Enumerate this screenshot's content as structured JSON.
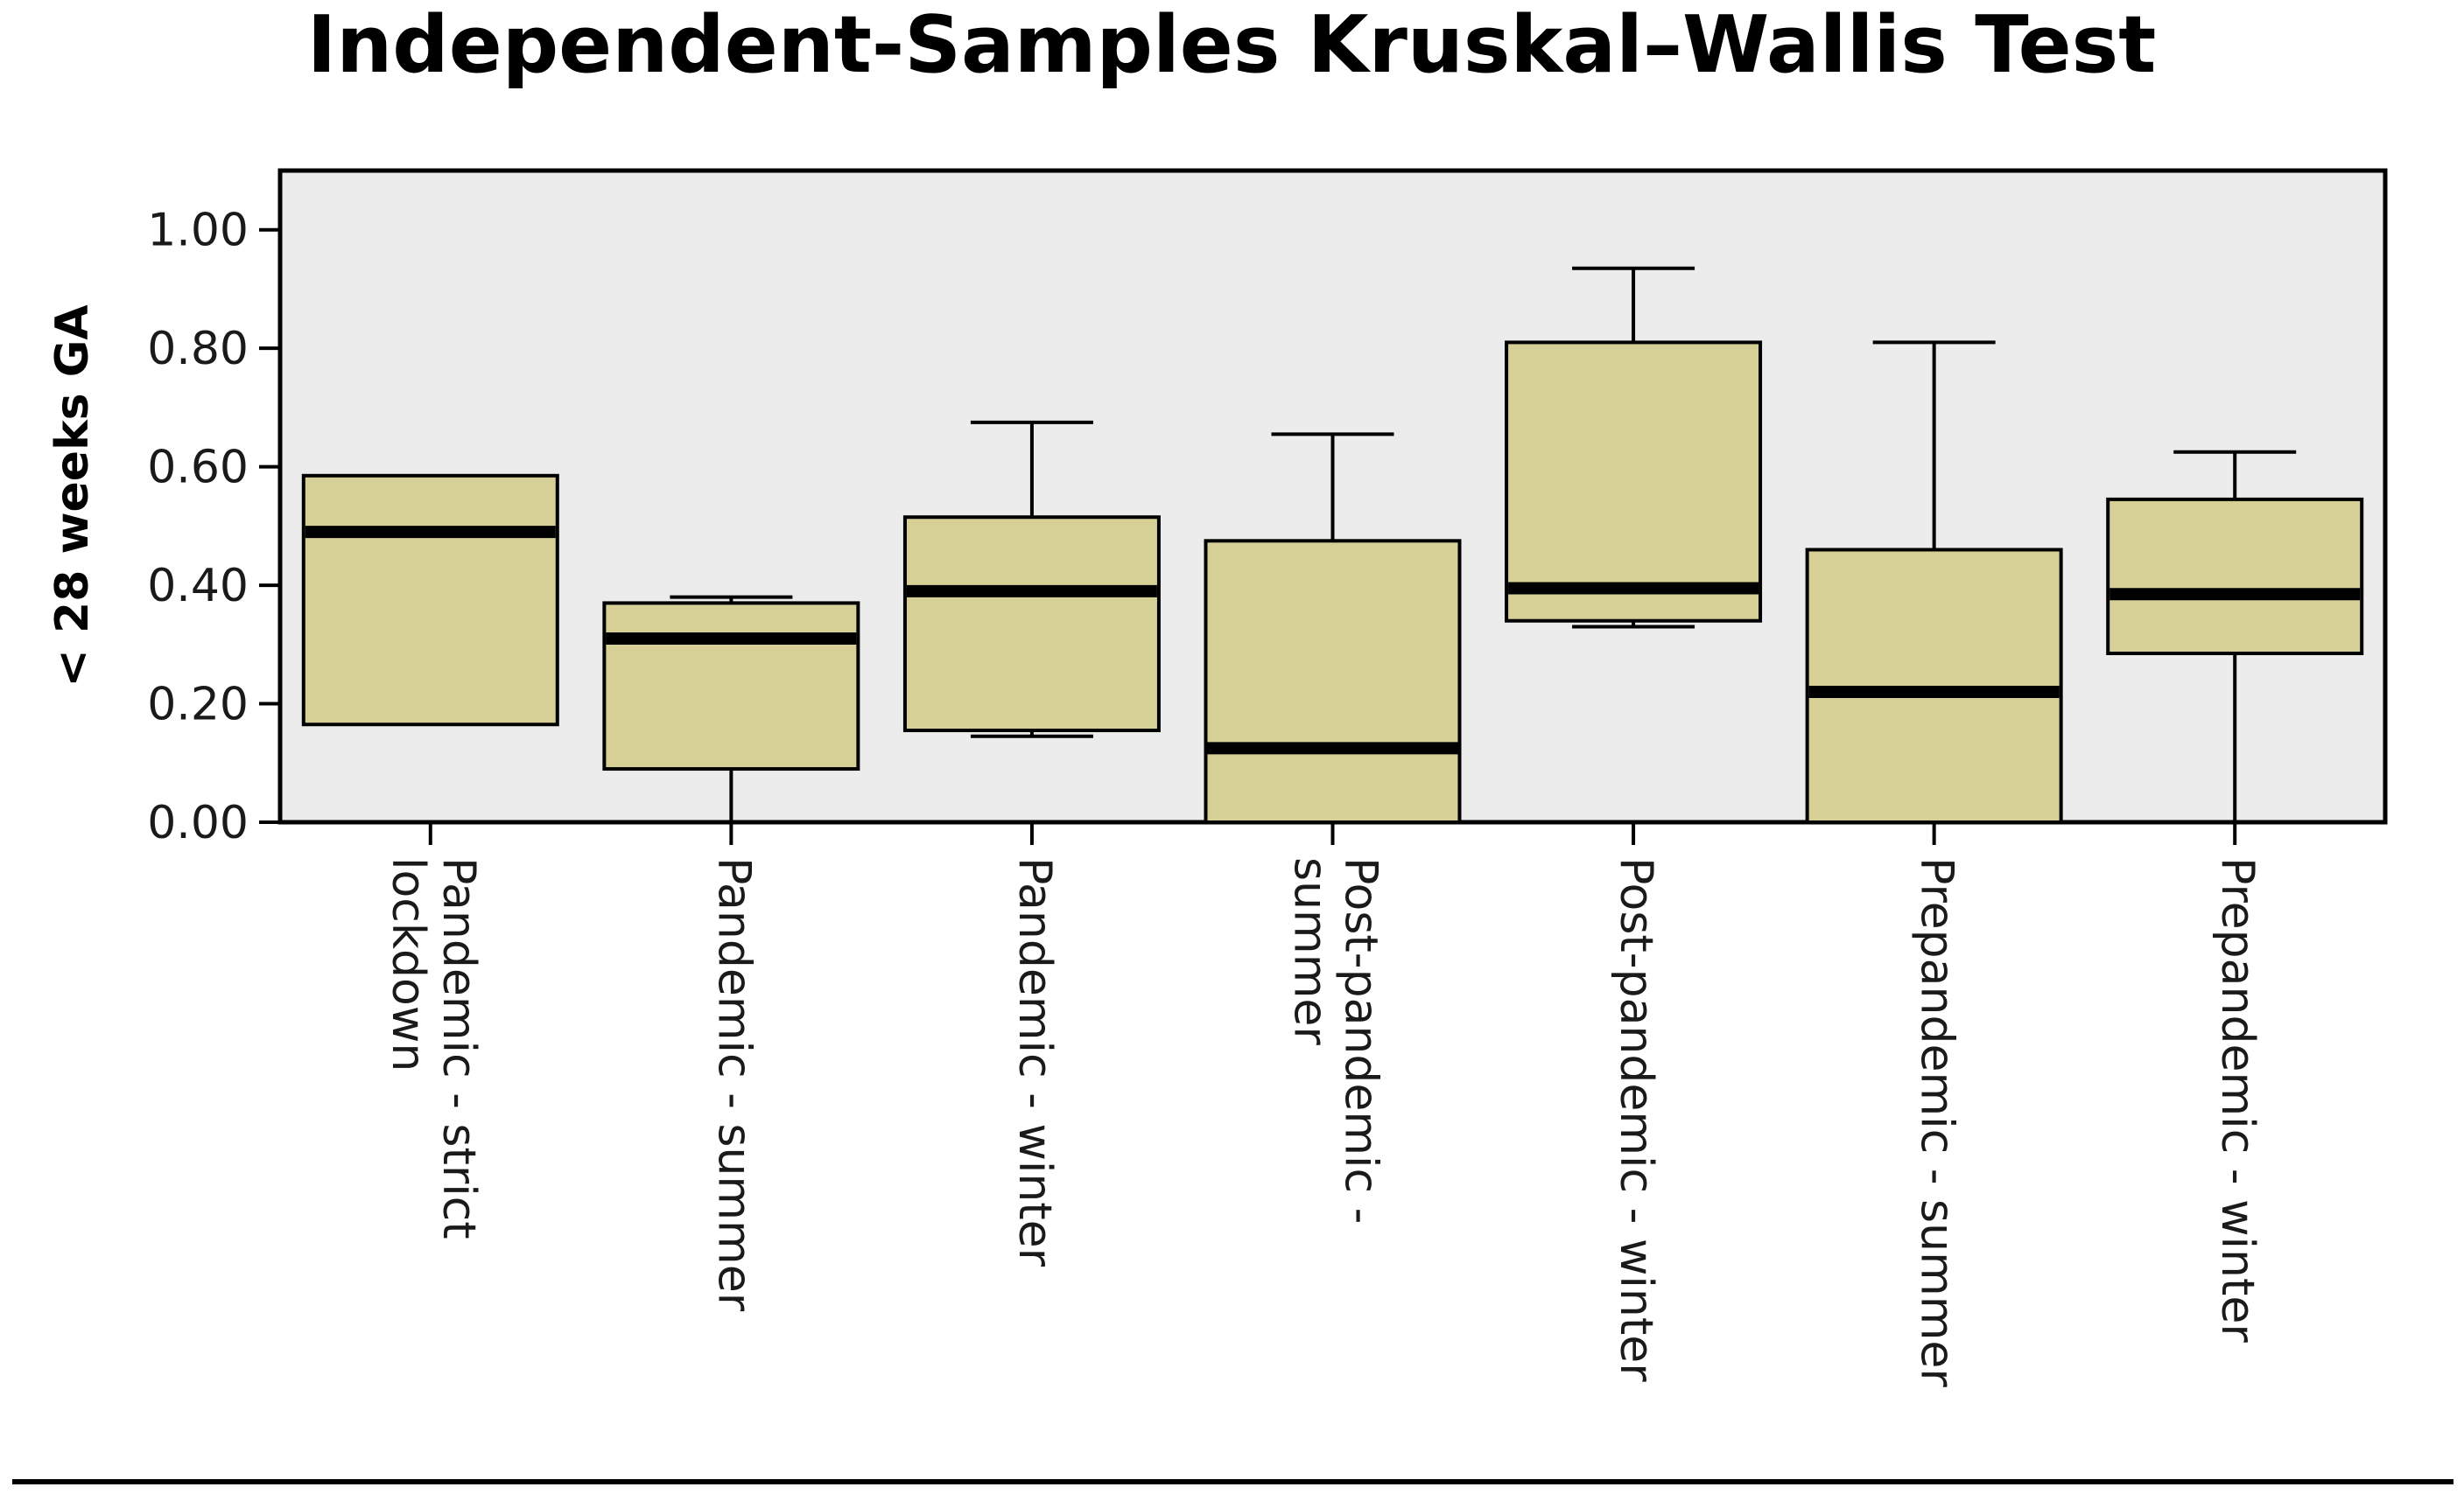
{
  "chart_data": {
    "type": "boxplot",
    "title": "Independent-Samples Kruskal–Wallis Test",
    "ylabel": "< 28 weeks GA",
    "xlabel": "",
    "ylim": [
      0,
      1.1
    ],
    "yticks": [
      "0.00",
      "0.20",
      "0.40",
      "0.60",
      "0.80",
      "1.00"
    ],
    "ytick_values": [
      0,
      0.2,
      0.4,
      0.6,
      0.8,
      1.0
    ],
    "grid": false,
    "colors": {
      "box_fill": "#d6cf96",
      "plot_background": "#ececec",
      "stroke": "#000000"
    },
    "categories": [
      [
        "Pandemic - strict",
        "lockdown"
      ],
      [
        "Pandemic - summer"
      ],
      [
        "Pandemic - winter"
      ],
      [
        "Post-pandemic -",
        "summer"
      ],
      [
        "Post-pandemic - winter"
      ],
      [
        "Prepandemic - summer"
      ],
      [
        "Prepandemic - winter"
      ]
    ],
    "boxes": [
      {
        "whisker_low": 0.165,
        "q1": 0.165,
        "median": 0.49,
        "q3": 0.585,
        "whisker_high": 0.585
      },
      {
        "whisker_low": 0.0,
        "q1": 0.09,
        "median": 0.31,
        "q3": 0.37,
        "whisker_high": 0.38
      },
      {
        "whisker_low": 0.145,
        "q1": 0.155,
        "median": 0.39,
        "q3": 0.515,
        "whisker_high": 0.675
      },
      {
        "whisker_low": 0.0,
        "q1": 0.0,
        "median": 0.125,
        "q3": 0.475,
        "whisker_high": 0.655
      },
      {
        "whisker_low": 0.33,
        "q1": 0.34,
        "median": 0.395,
        "q3": 0.81,
        "whisker_high": 0.935
      },
      {
        "whisker_low": 0.0,
        "q1": 0.0,
        "median": 0.22,
        "q3": 0.46,
        "whisker_high": 0.81
      },
      {
        "whisker_low": 0.0,
        "q1": 0.285,
        "median": 0.385,
        "q3": 0.545,
        "whisker_high": 0.625
      }
    ]
  }
}
